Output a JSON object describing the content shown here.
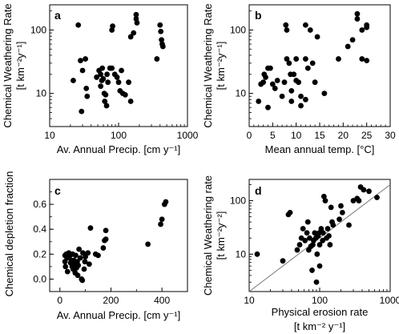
{
  "chart_data": [
    {
      "id": "a",
      "type": "scatter",
      "panel_label": "a",
      "xlabel": "Av. Annual Precip. [cm y⁻¹]",
      "ylabel": "Chemical Weathering Rate",
      "ylabel_units": "[t km⁻²y⁻¹]",
      "xscale": "log",
      "yscale": "log",
      "xlim": [
        10,
        1000
      ],
      "ylim": [
        3,
        250
      ],
      "xticks": [
        {
          "v": 10,
          "label": "10"
        },
        {
          "v": 100,
          "label": "100"
        },
        {
          "v": 1000,
          "label": "1000"
        }
      ],
      "yticks": [
        {
          "v": 10,
          "label": "10"
        },
        {
          "v": 100,
          "label": "100"
        }
      ],
      "points": [
        [
          26,
          120
        ],
        [
          22,
          16
        ],
        [
          28,
          33
        ],
        [
          33,
          35
        ],
        [
          30,
          23
        ],
        [
          34,
          12
        ],
        [
          29,
          5.2
        ],
        [
          35,
          9
        ],
        [
          48,
          18
        ],
        [
          52,
          23
        ],
        [
          55,
          20
        ],
        [
          58,
          25
        ],
        [
          55,
          13
        ],
        [
          57,
          16
        ],
        [
          60,
          17
        ],
        [
          62,
          10
        ],
        [
          63,
          7.5
        ],
        [
          65,
          9.5
        ],
        [
          67,
          6.4
        ],
        [
          68,
          20
        ],
        [
          70,
          15
        ],
        [
          75,
          25
        ],
        [
          80,
          25
        ],
        [
          80,
          100
        ],
        [
          82,
          115
        ],
        [
          88,
          20
        ],
        [
          95,
          18
        ],
        [
          100,
          15
        ],
        [
          105,
          11
        ],
        [
          110,
          23
        ],
        [
          115,
          10
        ],
        [
          125,
          9.5
        ],
        [
          140,
          15
        ],
        [
          150,
          7.5
        ],
        [
          150,
          78
        ],
        [
          165,
          90
        ],
        [
          180,
          150
        ],
        [
          185,
          130
        ],
        [
          180,
          175
        ],
        [
          360,
          35
        ],
        [
          400,
          120
        ],
        [
          410,
          95
        ],
        [
          420,
          70
        ],
        [
          430,
          60
        ],
        [
          440,
          55
        ]
      ]
    },
    {
      "id": "b",
      "type": "scatter",
      "panel_label": "b",
      "xlabel": "Mean annual temp. [°C]",
      "ylabel": "Chemical Weathering Rate",
      "ylabel_units": "[t km⁻²y⁻¹]",
      "xscale": "linear",
      "yscale": "log",
      "xlim": [
        0,
        30
      ],
      "ylim": [
        3,
        250
      ],
      "xticks": [
        {
          "v": 0,
          "label": "0"
        },
        {
          "v": 5,
          "label": "5"
        },
        {
          "v": 10,
          "label": "10"
        },
        {
          "v": 15,
          "label": "15"
        },
        {
          "v": 20,
          "label": "20"
        },
        {
          "v": 25,
          "label": "25"
        },
        {
          "v": 30,
          "label": "30"
        }
      ],
      "yticks": [
        {
          "v": 10,
          "label": "10"
        },
        {
          "v": 100,
          "label": "100"
        }
      ],
      "points": [
        [
          2,
          7.5
        ],
        [
          2.5,
          14
        ],
        [
          3,
          15
        ],
        [
          3.2,
          20
        ],
        [
          3.5,
          18
        ],
        [
          4,
          25
        ],
        [
          4,
          6
        ],
        [
          4.5,
          25
        ],
        [
          5,
          14
        ],
        [
          5.5,
          12
        ],
        [
          6,
          16
        ],
        [
          7,
          9
        ],
        [
          7.5,
          15
        ],
        [
          7.8,
          120
        ],
        [
          8,
          100
        ],
        [
          8,
          35
        ],
        [
          8.5,
          30
        ],
        [
          8.8,
          20
        ],
        [
          9,
          11
        ],
        [
          9,
          7.5
        ],
        [
          9.5,
          20
        ],
        [
          10,
          16
        ],
        [
          10,
          35
        ],
        [
          10.5,
          15
        ],
        [
          11,
          9
        ],
        [
          11,
          6.4
        ],
        [
          12,
          8
        ],
        [
          12,
          120
        ],
        [
          12,
          35
        ],
        [
          12.5,
          25
        ],
        [
          13,
          100
        ],
        [
          13.5,
          30
        ],
        [
          14,
          15
        ],
        [
          14.5,
          78
        ],
        [
          16,
          10
        ],
        [
          19,
          35
        ],
        [
          21,
          55
        ],
        [
          22,
          70
        ],
        [
          23,
          150
        ],
        [
          23,
          180
        ],
        [
          24,
          35
        ],
        [
          24,
          100
        ],
        [
          25,
          110
        ],
        [
          25,
          120
        ],
        [
          25,
          33
        ]
      ]
    },
    {
      "id": "c",
      "type": "scatter",
      "panel_label": "c",
      "xlabel": "Av. Annual Precip. [cm y⁻¹]",
      "ylabel": "Chemical depletion fraction",
      "xscale": "linear",
      "yscale": "linear",
      "xlim": [
        -40,
        500
      ],
      "ylim": [
        -0.1,
        0.8
      ],
      "xticks": [
        {
          "v": 0,
          "label": "0"
        },
        {
          "v": 200,
          "label": "200"
        },
        {
          "v": 400,
          "label": "400"
        }
      ],
      "yticks": [
        {
          "v": 0.0,
          "label": "0.0"
        },
        {
          "v": 0.2,
          "label": "0.2"
        },
        {
          "v": 0.4,
          "label": "0.4"
        },
        {
          "v": 0.6,
          "label": "0.6"
        }
      ],
      "points": [
        [
          20,
          0.19
        ],
        [
          20,
          0.14
        ],
        [
          22,
          0.1
        ],
        [
          25,
          0.2
        ],
        [
          28,
          0.17
        ],
        [
          30,
          0.06
        ],
        [
          35,
          0.21
        ],
        [
          40,
          0.19
        ],
        [
          42,
          0.13
        ],
        [
          45,
          0.15
        ],
        [
          48,
          0.1
        ],
        [
          50,
          0.2
        ],
        [
          52,
          0.08
        ],
        [
          55,
          0.15
        ],
        [
          58,
          0.12
        ],
        [
          60,
          0.05
        ],
        [
          62,
          0.19
        ],
        [
          65,
          0.09
        ],
        [
          68,
          0.14
        ],
        [
          70,
          0.03
        ],
        [
          72,
          0.11
        ],
        [
          75,
          0.24
        ],
        [
          80,
          0.17
        ],
        [
          85,
          0.0
        ],
        [
          88,
          -0.01
        ],
        [
          90,
          0.21
        ],
        [
          95,
          0.08
        ],
        [
          98,
          0.14
        ],
        [
          100,
          0.18
        ],
        [
          110,
          0.21
        ],
        [
          115,
          0.12
        ],
        [
          120,
          0.41
        ],
        [
          140,
          0.2
        ],
        [
          150,
          0.19
        ],
        [
          170,
          0.25
        ],
        [
          175,
          0.31
        ],
        [
          180,
          0.32
        ],
        [
          180,
          0.39
        ],
        [
          345,
          0.28
        ],
        [
          395,
          0.44
        ],
        [
          400,
          0.48
        ],
        [
          410,
          0.6
        ],
        [
          415,
          0.62
        ]
      ]
    },
    {
      "id": "d",
      "type": "scatter",
      "panel_label": "d",
      "xlabel": "Physical erosion rate",
      "xlabel_units": "[t km⁻² y⁻¹]",
      "ylabel": "Chemical Weathering rate",
      "ylabel_units": "[t km⁻²y⁻²]",
      "xscale": "log",
      "yscale": "log",
      "xlim": [
        10,
        1000
      ],
      "ylim": [
        2,
        250
      ],
      "xticks": [
        {
          "v": 10,
          "label": "10"
        },
        {
          "v": 100,
          "label": "100"
        },
        {
          "v": 1000,
          "label": "1000"
        }
      ],
      "yticks": [
        {
          "v": 10,
          "label": "10"
        },
        {
          "v": 100,
          "label": "100"
        }
      ],
      "reference_line": {
        "type": "1:1",
        "x": [
          10,
          1000
        ],
        "y": [
          2,
          200
        ],
        "color": "#777777"
      },
      "points": [
        [
          13,
          10
        ],
        [
          30,
          7.5
        ],
        [
          36,
          55
        ],
        [
          38,
          60
        ],
        [
          48,
          12
        ],
        [
          52,
          15
        ],
        [
          55,
          20
        ],
        [
          58,
          30
        ],
        [
          62,
          18
        ],
        [
          66,
          25
        ],
        [
          68,
          40
        ],
        [
          70,
          12
        ],
        [
          72,
          20
        ],
        [
          75,
          14
        ],
        [
          78,
          5
        ],
        [
          80,
          15
        ],
        [
          82,
          18
        ],
        [
          85,
          25
        ],
        [
          88,
          20
        ],
        [
          90,
          3
        ],
        [
          92,
          10
        ],
        [
          95,
          22
        ],
        [
          98,
          25
        ],
        [
          100,
          15
        ],
        [
          100,
          6
        ],
        [
          105,
          30
        ],
        [
          110,
          18
        ],
        [
          112,
          25
        ],
        [
          115,
          120
        ],
        [
          120,
          100
        ],
        [
          125,
          20
        ],
        [
          130,
          30
        ],
        [
          135,
          22
        ],
        [
          140,
          15
        ],
        [
          145,
          75
        ],
        [
          150,
          40
        ],
        [
          155,
          35
        ],
        [
          190,
          45
        ],
        [
          200,
          80
        ],
        [
          210,
          60
        ],
        [
          260,
          35
        ],
        [
          300,
          100
        ],
        [
          340,
          110
        ],
        [
          360,
          100
        ],
        [
          380,
          180
        ],
        [
          420,
          160
        ],
        [
          500,
          150
        ],
        [
          650,
          115
        ]
      ]
    }
  ]
}
